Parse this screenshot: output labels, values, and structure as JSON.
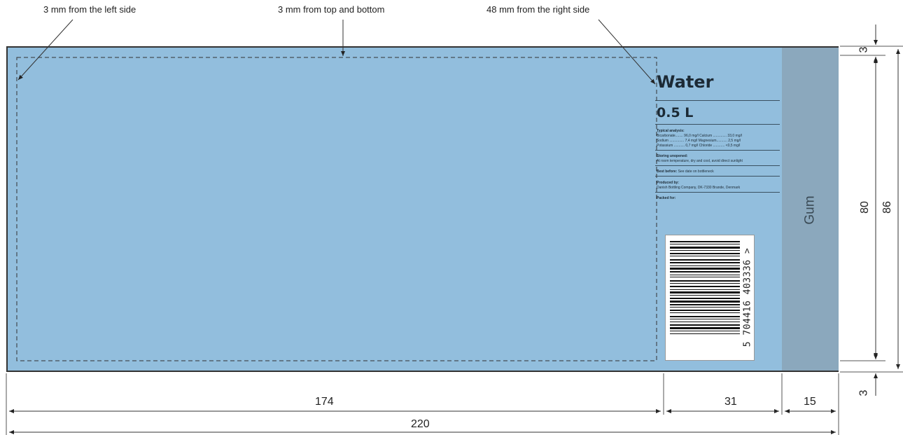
{
  "annotations": {
    "left": "3 mm from the left side",
    "top": "3 mm from top and bottom",
    "right": "48 mm from the right side"
  },
  "label": {
    "title": "Water",
    "volume": "0.5 L",
    "analysis_heading": "Typical analysis:",
    "analysis_rows": [
      "Bicarbonate........  96,0 mg/l  Calcium ..............  33,0 mg/l",
      "Sodium ...............  7,4 mg/l  Magnesium...........  2,5 mg/l",
      "Potassium ...........  0,7 mg/l  Chloride ............  <0,5 mg/l"
    ],
    "storing_heading": "Storing unopened:",
    "storing_text": "At room temperature, dry and cool, avoid direct sunlight",
    "best_before_heading": "Best before:",
    "best_before_text": "See date on bottleneck",
    "produced_heading": "Produced by:",
    "produced_text": "Danish Bottling Company, DK-7330 Brande, Denmark",
    "packed_heading": "Packed for:",
    "barcode_number": "5 704416 403336 >",
    "gum": "Gum"
  },
  "dimensions": {
    "d174": "174",
    "d31": "31",
    "d15": "15",
    "d220": "220",
    "d3_top": "3",
    "d3_bottom": "3",
    "d80": "80",
    "d86": "86"
  },
  "colors": {
    "label_blue": "#92bedd",
    "gum_strip": "#8ba8bd",
    "outline": "#333333"
  }
}
